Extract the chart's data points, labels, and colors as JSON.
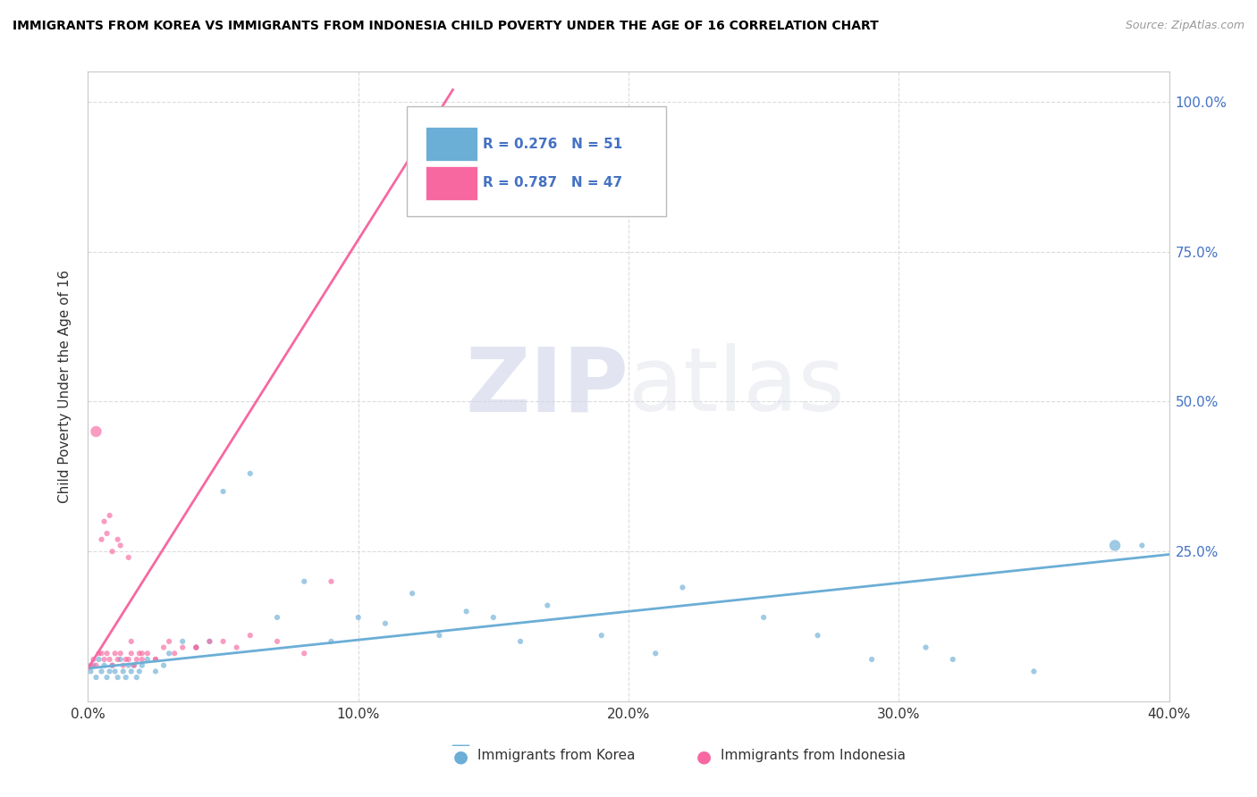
{
  "title": "IMMIGRANTS FROM KOREA VS IMMIGRANTS FROM INDONESIA CHILD POVERTY UNDER THE AGE OF 16 CORRELATION CHART",
  "source": "Source: ZipAtlas.com",
  "ylabel": "Child Poverty Under the Age of 16",
  "xlim": [
    0.0,
    0.4
  ],
  "ylim": [
    0.0,
    1.05
  ],
  "xtick_labels": [
    "0.0%",
    "10.0%",
    "20.0%",
    "30.0%",
    "40.0%"
  ],
  "xtick_vals": [
    0.0,
    0.1,
    0.2,
    0.3,
    0.4
  ],
  "ytick_labels": [
    "100.0%",
    "75.0%",
    "50.0%",
    "25.0%"
  ],
  "ytick_vals": [
    1.0,
    0.75,
    0.5,
    0.25
  ],
  "korea_color": "#6baed6",
  "indonesia_color": "#f768a1",
  "korea_R": "R = 0.276",
  "korea_N": "N = 51",
  "indonesia_R": "R = 0.787",
  "indonesia_N": "N = 47",
  "watermark_zip": "ZIP",
  "watermark_atlas": "atlas",
  "legend_labels": [
    "Immigrants from Korea",
    "Immigrants from Indonesia"
  ],
  "korea_scatter_x": [
    0.001,
    0.002,
    0.003,
    0.004,
    0.005,
    0.006,
    0.007,
    0.008,
    0.009,
    0.01,
    0.011,
    0.012,
    0.013,
    0.014,
    0.015,
    0.016,
    0.017,
    0.018,
    0.019,
    0.02,
    0.022,
    0.025,
    0.028,
    0.03,
    0.035,
    0.04,
    0.045,
    0.05,
    0.06,
    0.07,
    0.08,
    0.09,
    0.1,
    0.11,
    0.12,
    0.13,
    0.14,
    0.15,
    0.16,
    0.17,
    0.19,
    0.21,
    0.22,
    0.25,
    0.27,
    0.29,
    0.31,
    0.32,
    0.35,
    0.38,
    0.39
  ],
  "korea_scatter_y": [
    0.05,
    0.06,
    0.04,
    0.07,
    0.05,
    0.06,
    0.04,
    0.05,
    0.06,
    0.05,
    0.04,
    0.07,
    0.05,
    0.04,
    0.06,
    0.05,
    0.06,
    0.04,
    0.05,
    0.06,
    0.07,
    0.05,
    0.06,
    0.08,
    0.1,
    0.09,
    0.1,
    0.35,
    0.38,
    0.14,
    0.2,
    0.1,
    0.14,
    0.13,
    0.18,
    0.11,
    0.15,
    0.14,
    0.1,
    0.16,
    0.11,
    0.08,
    0.19,
    0.14,
    0.11,
    0.07,
    0.09,
    0.07,
    0.05,
    0.26,
    0.26
  ],
  "korea_scatter_size": [
    20,
    20,
    20,
    20,
    20,
    20,
    20,
    20,
    20,
    20,
    20,
    20,
    20,
    20,
    20,
    20,
    20,
    20,
    20,
    20,
    20,
    20,
    20,
    20,
    20,
    20,
    20,
    20,
    20,
    20,
    20,
    20,
    20,
    20,
    20,
    20,
    20,
    20,
    20,
    20,
    20,
    20,
    20,
    20,
    20,
    20,
    20,
    20,
    20,
    80,
    20
  ],
  "indonesia_scatter_x": [
    0.001,
    0.002,
    0.003,
    0.004,
    0.005,
    0.006,
    0.007,
    0.008,
    0.009,
    0.01,
    0.011,
    0.012,
    0.013,
    0.014,
    0.015,
    0.016,
    0.017,
    0.018,
    0.019,
    0.02,
    0.022,
    0.025,
    0.028,
    0.03,
    0.035,
    0.04,
    0.045,
    0.05,
    0.055,
    0.06,
    0.07,
    0.08,
    0.09,
    0.005,
    0.007,
    0.009,
    0.012,
    0.015,
    0.003,
    0.006,
    0.008,
    0.011,
    0.016,
    0.02,
    0.025,
    0.032,
    0.04
  ],
  "indonesia_scatter_y": [
    0.06,
    0.07,
    0.06,
    0.08,
    0.08,
    0.07,
    0.08,
    0.07,
    0.06,
    0.08,
    0.07,
    0.08,
    0.06,
    0.07,
    0.07,
    0.08,
    0.06,
    0.07,
    0.08,
    0.07,
    0.08,
    0.07,
    0.09,
    0.1,
    0.09,
    0.09,
    0.1,
    0.1,
    0.09,
    0.11,
    0.1,
    0.08,
    0.2,
    0.27,
    0.28,
    0.25,
    0.26,
    0.24,
    0.45,
    0.3,
    0.31,
    0.27,
    0.1,
    0.08,
    0.07,
    0.08,
    0.09
  ],
  "indonesia_scatter_size": [
    20,
    20,
    20,
    20,
    20,
    20,
    20,
    20,
    20,
    20,
    20,
    20,
    20,
    20,
    20,
    20,
    20,
    20,
    20,
    20,
    20,
    20,
    20,
    20,
    20,
    20,
    20,
    20,
    20,
    20,
    20,
    20,
    20,
    20,
    20,
    20,
    20,
    20,
    80,
    20,
    20,
    20,
    20,
    20,
    20,
    20,
    20
  ],
  "korea_line_x": [
    0.0,
    0.4
  ],
  "korea_line_y": [
    0.055,
    0.245
  ],
  "indonesia_line_x": [
    0.0,
    0.135
  ],
  "indonesia_line_y": [
    0.055,
    1.02
  ]
}
